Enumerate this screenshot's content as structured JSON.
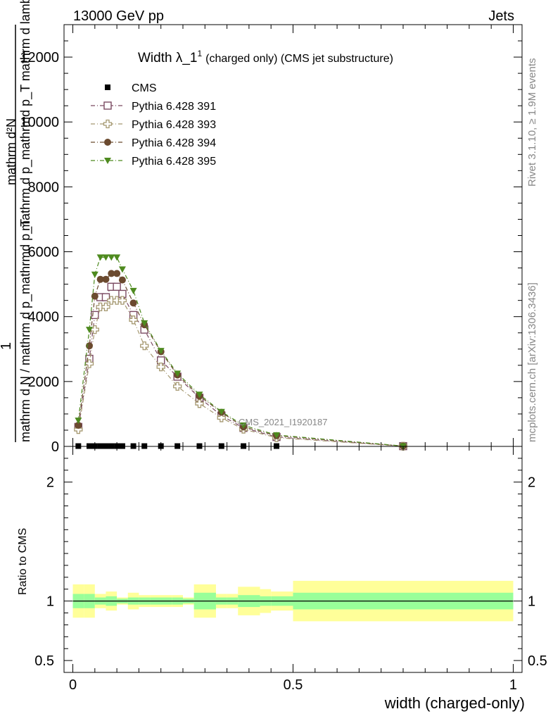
{
  "header": {
    "left": "13000 GeV pp",
    "right": "Jets"
  },
  "side_labels": {
    "rivet": "Rivet 3.1.10, ≥ 1.9M events",
    "mcplots": "mcplots.cern.ch [arXiv:1306.3436]"
  },
  "chart_data": [
    {
      "type": "scatter",
      "title_main": "Width λ_1",
      "title_sup": "1",
      "title_rest": "(charged only) (CMS jet substructure)",
      "ylabel_numerator": "mathrm d²N",
      "ylabel_numerator_sub": "mathrm d p_mathrmd p_T mathrm d lambda",
      "ylabel_fraction_one": "1",
      "ylabel_denominator": "mathrm d N / mathrm d p_mathrmd p_T",
      "watermark": "CMS_2021_I1920187",
      "ylim": [
        0,
        13000
      ],
      "xlim": [
        -0.02,
        1.02
      ],
      "yticks": [
        {
          "value": 0,
          "label": "0"
        },
        {
          "value": 2000,
          "label": "2000"
        },
        {
          "value": 4000,
          "label": "4000"
        },
        {
          "value": 6000,
          "label": "6000"
        },
        {
          "value": 8000,
          "label": "8000"
        },
        {
          "value": 10000,
          "label": "10000"
        },
        {
          "value": 12000,
          "label": "12000"
        }
      ],
      "x": [
        0.0125,
        0.0375,
        0.05,
        0.0625,
        0.075,
        0.0875,
        0.1,
        0.1125,
        0.1375,
        0.1625,
        0.2,
        0.2375,
        0.2875,
        0.3375,
        0.3875,
        0.4625,
        0.75
      ],
      "legend": [
        "CMS",
        "Pythia 6.428 391",
        "Pythia 6.428 393",
        "Pythia 6.428 394",
        "Pythia 6.428 395"
      ],
      "series": [
        {
          "name": "CMS",
          "color": "#000000",
          "marker": "square-filled",
          "values": [
            10,
            10,
            10,
            10,
            10,
            10,
            10,
            10,
            10,
            10,
            10,
            10,
            10,
            10,
            10,
            10,
            null
          ]
        },
        {
          "name": "Pythia 6.428 391",
          "color": "#7b4b62",
          "marker": "square-open",
          "values": [
            600,
            2700,
            4050,
            4600,
            4600,
            4920,
            4920,
            4700,
            4050,
            3600,
            2650,
            2150,
            1500,
            950,
            570,
            290,
            8
          ]
        },
        {
          "name": "Pythia 6.428 393",
          "color": "#a59870",
          "marker": "cross-open",
          "values": [
            520,
            2550,
            3600,
            4300,
            4300,
            4500,
            4500,
            4500,
            3900,
            3100,
            2450,
            1850,
            1320,
            880,
            530,
            270,
            6
          ]
        },
        {
          "name": "Pythia 6.428 394",
          "color": "#6b4a2f",
          "marker": "circle-filled",
          "values": [
            650,
            3100,
            4630,
            5150,
            5150,
            5330,
            5330,
            5130,
            4420,
            3750,
            2920,
            2200,
            1550,
            1050,
            600,
            330,
            10
          ]
        },
        {
          "name": "Pythia 6.428 395",
          "color": "#4e8a1f",
          "marker": "triangle-down-filled",
          "values": [
            800,
            3600,
            5300,
            5830,
            5830,
            5830,
            5830,
            5460,
            4800,
            3800,
            2950,
            2250,
            1600,
            1070,
            650,
            350,
            12
          ]
        }
      ]
    },
    {
      "type": "area",
      "ylabel": "Ratio to CMS",
      "xlabel": "width (charged-only)",
      "ylim": [
        0.4,
        2.3
      ],
      "xlim": [
        -0.02,
        1.02
      ],
      "yticks_left": [
        {
          "value": 0.5,
          "label": "0.5"
        },
        {
          "value": 1,
          "label": "1"
        },
        {
          "value": 2,
          "label": "2"
        }
      ],
      "yticks_right": [
        {
          "value": 0.5,
          "label": "0.5"
        },
        {
          "value": 1,
          "label": "1"
        },
        {
          "value": 2,
          "label": "2"
        }
      ],
      "xticks": [
        {
          "value": 0,
          "label": "0"
        },
        {
          "value": 0.5,
          "label": "0.5"
        },
        {
          "value": 1,
          "label": "1"
        }
      ],
      "bins": [
        0,
        0.025,
        0.05,
        0.075,
        0.1,
        0.125,
        0.15,
        0.175,
        0.225,
        0.25,
        0.275,
        0.325,
        0.35,
        0.375,
        0.425,
        0.45,
        0.5,
        1.0
      ],
      "stat_err": [
        0.06,
        0.06,
        0.03,
        0.04,
        0.02,
        0.03,
        0.03,
        0.03,
        0.03,
        0.02,
        0.07,
        0.03,
        0.03,
        0.05,
        0.04,
        0.04,
        0.07
      ],
      "total_err": [
        0.14,
        0.14,
        0.06,
        0.08,
        0.03,
        0.07,
        0.05,
        0.05,
        0.05,
        0.03,
        0.14,
        0.06,
        0.06,
        0.12,
        0.1,
        0.08,
        0.17
      ],
      "colors": {
        "total": "#ffff99",
        "stat": "#99ff99",
        "line": "#000000"
      }
    }
  ]
}
